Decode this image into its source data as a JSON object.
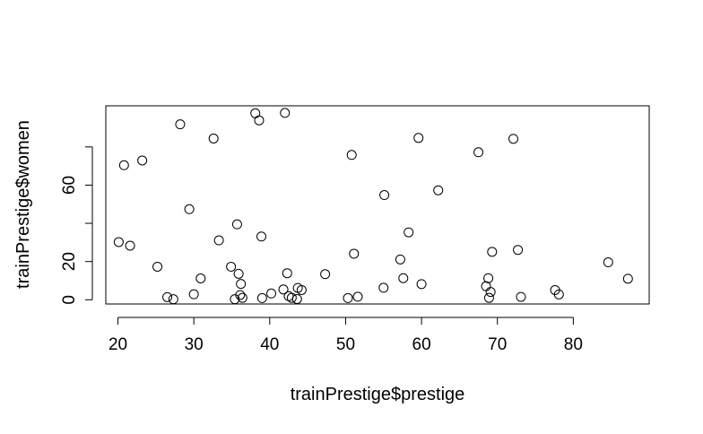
{
  "chart_data": {
    "type": "scatter",
    "title": "",
    "xlabel": "trainPrestige$prestige",
    "ylabel": "trainPrestige$women",
    "xlim": [
      18.4,
      90.0
    ],
    "ylim": [
      -2.2,
      101.5
    ],
    "xticks": [
      20,
      30,
      40,
      50,
      60,
      70,
      80
    ],
    "yticks": [
      0,
      20,
      40,
      60,
      80
    ],
    "ytick_labels": [
      "0",
      "20",
      "",
      "60",
      ""
    ],
    "grid": false,
    "legend": "none",
    "points": [
      {
        "x": 20.1,
        "y": 30.2
      },
      {
        "x": 20.8,
        "y": 70.4
      },
      {
        "x": 21.6,
        "y": 28.3
      },
      {
        "x": 23.2,
        "y": 72.9
      },
      {
        "x": 25.2,
        "y": 17.3
      },
      {
        "x": 26.5,
        "y": 1.4
      },
      {
        "x": 27.3,
        "y": 0.3
      },
      {
        "x": 28.2,
        "y": 91.8
      },
      {
        "x": 29.4,
        "y": 47.4
      },
      {
        "x": 30.0,
        "y": 2.9
      },
      {
        "x": 30.9,
        "y": 11.2
      },
      {
        "x": 32.6,
        "y": 84.4
      },
      {
        "x": 33.3,
        "y": 31.1
      },
      {
        "x": 34.9,
        "y": 17.3
      },
      {
        "x": 35.4,
        "y": 0.3
      },
      {
        "x": 35.7,
        "y": 39.5
      },
      {
        "x": 35.9,
        "y": 13.6
      },
      {
        "x": 36.1,
        "y": 2.5
      },
      {
        "x": 36.2,
        "y": 8.3
      },
      {
        "x": 36.4,
        "y": 1.0
      },
      {
        "x": 38.1,
        "y": 97.6
      },
      {
        "x": 38.6,
        "y": 93.9
      },
      {
        "x": 38.9,
        "y": 33.1
      },
      {
        "x": 39.0,
        "y": 0.9
      },
      {
        "x": 40.2,
        "y": 3.3
      },
      {
        "x": 41.8,
        "y": 5.4
      },
      {
        "x": 42.0,
        "y": 97.8
      },
      {
        "x": 42.3,
        "y": 13.9
      },
      {
        "x": 42.5,
        "y": 1.9
      },
      {
        "x": 42.9,
        "y": 1.0
      },
      {
        "x": 43.6,
        "y": 0.4
      },
      {
        "x": 43.7,
        "y": 6.2
      },
      {
        "x": 44.2,
        "y": 5.1
      },
      {
        "x": 47.3,
        "y": 13.4
      },
      {
        "x": 50.3,
        "y": 0.9
      },
      {
        "x": 50.8,
        "y": 75.8
      },
      {
        "x": 51.1,
        "y": 24.1
      },
      {
        "x": 51.6,
        "y": 1.6
      },
      {
        "x": 55.0,
        "y": 6.3
      },
      {
        "x": 55.1,
        "y": 54.8
      },
      {
        "x": 57.2,
        "y": 21.1
      },
      {
        "x": 57.6,
        "y": 11.3
      },
      {
        "x": 58.3,
        "y": 35.3
      },
      {
        "x": 59.6,
        "y": 84.7
      },
      {
        "x": 60.0,
        "y": 8.2
      },
      {
        "x": 62.2,
        "y": 57.3
      },
      {
        "x": 67.5,
        "y": 77.2
      },
      {
        "x": 68.5,
        "y": 7.1
      },
      {
        "x": 68.8,
        "y": 11.3
      },
      {
        "x": 68.9,
        "y": 1.0
      },
      {
        "x": 69.1,
        "y": 4.1
      },
      {
        "x": 69.3,
        "y": 25.1
      },
      {
        "x": 72.1,
        "y": 84.2
      },
      {
        "x": 72.7,
        "y": 26.1
      },
      {
        "x": 73.1,
        "y": 1.5
      },
      {
        "x": 77.6,
        "y": 5.1
      },
      {
        "x": 78.1,
        "y": 2.8
      },
      {
        "x": 84.6,
        "y": 19.6
      },
      {
        "x": 87.2,
        "y": 11.0
      }
    ]
  }
}
